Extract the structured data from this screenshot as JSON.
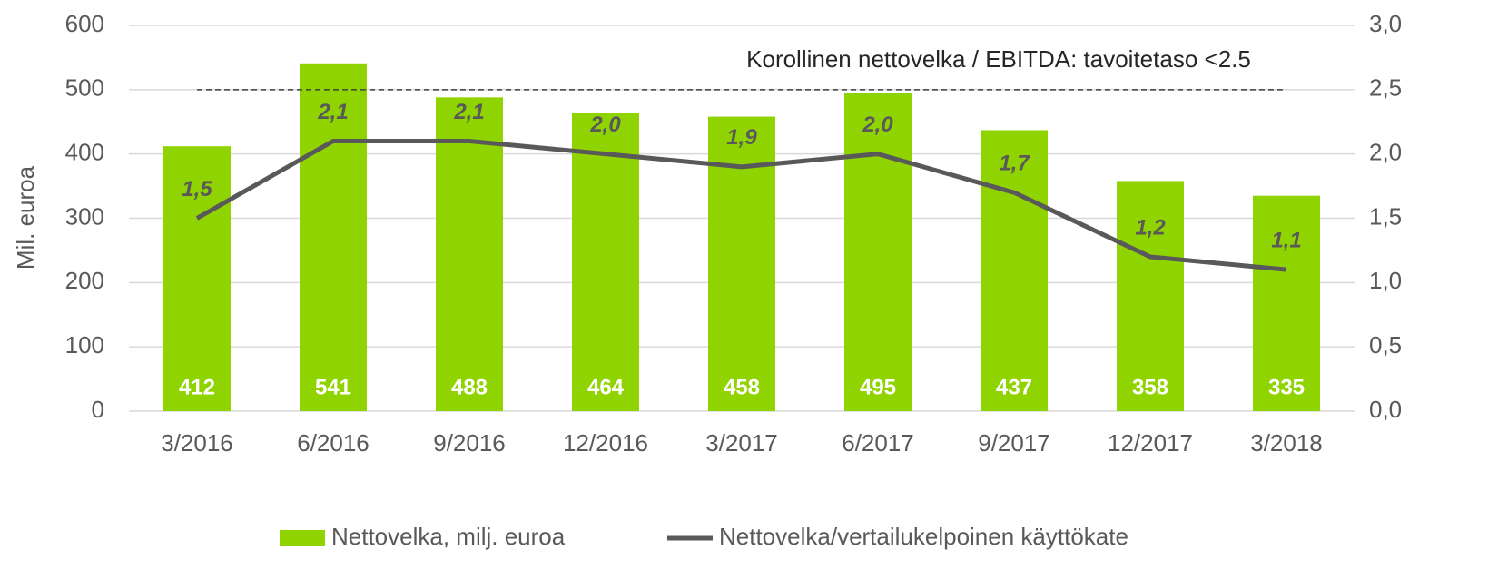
{
  "chart_data": {
    "type": "combo",
    "y_axis_label": "Mil. euroa",
    "categories": [
      "3/2016",
      "6/2016",
      "9/2016",
      "12/2016",
      "3/2017",
      "6/2017",
      "9/2017",
      "12/2017",
      "3/2018"
    ],
    "series": [
      {
        "name": "Nettovelka, milj. euroa",
        "type": "bar",
        "color": "#8fd400",
        "values": [
          412,
          541,
          488,
          464,
          458,
          495,
          437,
          358,
          335
        ]
      },
      {
        "name": "Nettovelka/vertailukelpoinen käyttökate",
        "type": "line",
        "axis": "y2",
        "color": "#595959",
        "values": [
          1.5,
          2.1,
          2.1,
          2.0,
          1.9,
          2.0,
          1.7,
          1.2,
          1.1
        ],
        "value_labels": [
          "1,5",
          "2,1",
          "2,1",
          "2,0",
          "1,9",
          "2,0",
          "1,7",
          "1,2",
          "1,1"
        ]
      }
    ],
    "reference_line": {
      "value": 2.5,
      "axis": "y2",
      "label": "Korollinen nettovelka / EBITDA: tavoitetaso <2.5"
    },
    "ylim": [
      0,
      600
    ],
    "yticks": [
      0,
      100,
      200,
      300,
      400,
      500,
      600
    ],
    "y2lim": [
      0,
      3
    ],
    "y2ticks": [
      {
        "value": 0,
        "label": "0,0"
      },
      {
        "value": 0.5,
        "label": "0,5"
      },
      {
        "value": 1,
        "label": "1,0"
      },
      {
        "value": 1.5,
        "label": "1,5"
      },
      {
        "value": 2,
        "label": "2,0"
      },
      {
        "value": 2.5,
        "label": "2,5"
      },
      {
        "value": 3,
        "label": "3,0"
      }
    ],
    "grid": true,
    "legend": "bottom"
  }
}
